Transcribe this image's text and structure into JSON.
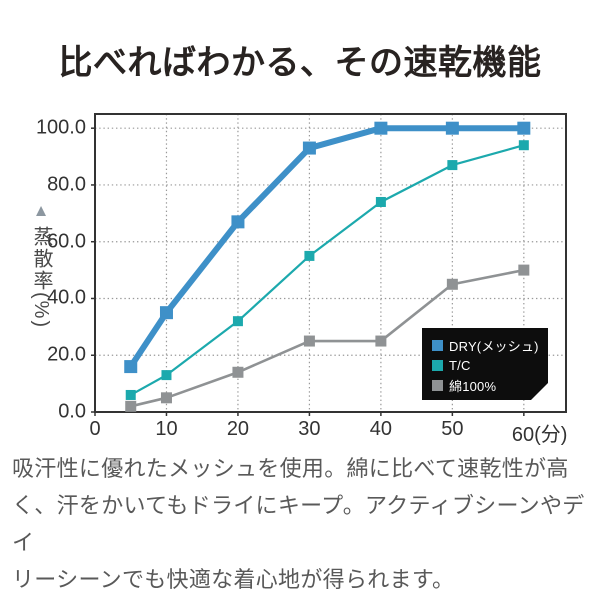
{
  "title": "比べればわかる、その速乾機能",
  "description_lines": [
    "吸汗性に優れたメッシュを使用。綿に比べて速乾性が高",
    "く、汗をかいてもドライにキープ。アクティブシーンやデイ",
    "リーシーンでも快適な着心地が得られます。"
  ],
  "colors": {
    "title_text": "#282321",
    "body_text": "#595959",
    "axis_border": "#333333",
    "grid_dots": "#999999",
    "tick_text": "#333333",
    "legend_bg": "#0d0d0d",
    "legend_text": "#ffffff",
    "y_axis_title_text": "#4a4a4a",
    "triangle_icon": "#8c97a0"
  },
  "chart_data": {
    "type": "line",
    "title": "比べればわかる、その速乾機能",
    "ylabel": "蒸散率(%)",
    "xlabel_unit": "(分)",
    "x": [
      5,
      10,
      20,
      30,
      40,
      50,
      60
    ],
    "series": [
      {
        "name": "DRY(メッシュ)",
        "color": "#3e90c8",
        "values": [
          16,
          35,
          67,
          93,
          100,
          100,
          100
        ]
      },
      {
        "name": "T/C",
        "color": "#1ca9ad",
        "values": [
          6,
          13,
          32,
          55,
          74,
          87,
          94
        ]
      },
      {
        "name": "綿100%",
        "color": "#8f9294",
        "values": [
          2,
          5,
          14,
          25,
          25,
          45,
          50
        ]
      }
    ],
    "x_ticks": [
      {
        "value": 0,
        "label": "0"
      },
      {
        "value": 10,
        "label": "10"
      },
      {
        "value": 20,
        "label": "20"
      },
      {
        "value": 30,
        "label": "30"
      },
      {
        "value": 40,
        "label": "40"
      },
      {
        "value": 50,
        "label": "50"
      },
      {
        "value": 60,
        "label": "60(分)"
      }
    ],
    "y_ticks": [
      {
        "value": 0,
        "label": "0.0"
      },
      {
        "value": 20,
        "label": "20.0"
      },
      {
        "value": 40,
        "label": "40.0"
      },
      {
        "value": 60,
        "label": "60.0"
      },
      {
        "value": 80,
        "label": "80.0"
      },
      {
        "value": 100,
        "label": "100.0"
      }
    ],
    "xlim": [
      0,
      65.9
    ],
    "ylim": [
      0,
      105
    ],
    "grid": "dotted",
    "legend_position": "bottom-right"
  }
}
